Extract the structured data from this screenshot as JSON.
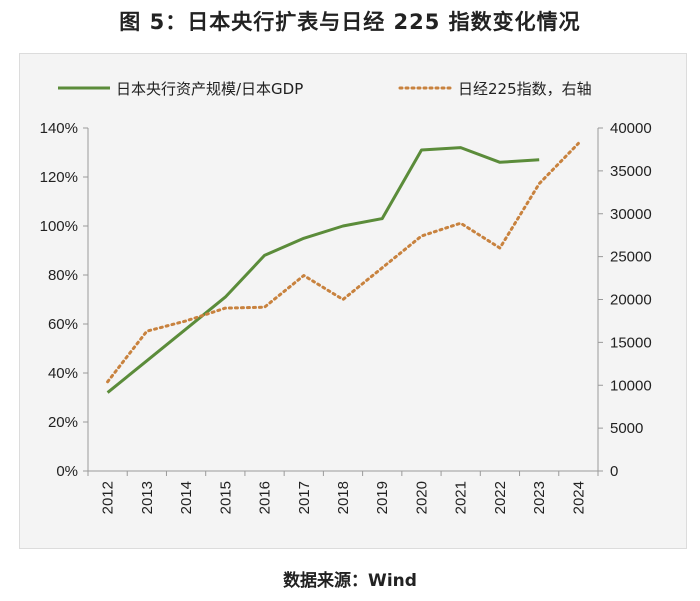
{
  "figure": {
    "title": "图 5：日本央行扩表与日经 225 指数变化情况",
    "source": "数据来源：Wind"
  },
  "chart_data": {
    "type": "line",
    "categories": [
      "2012",
      "2013",
      "2014",
      "2015",
      "2016",
      "2017",
      "2018",
      "2019",
      "2020",
      "2021",
      "2022",
      "2023",
      "2024"
    ],
    "series": [
      {
        "name": "日本央行资产规模/日本GDP",
        "axis": "left",
        "style": "solid",
        "color": "#5b8c3a",
        "values": [
          0.32,
          0.45,
          0.58,
          0.71,
          0.88,
          0.95,
          1.0,
          1.03,
          1.31,
          1.32,
          1.26,
          1.27,
          null
        ]
      },
      {
        "name": "日经225指数，右轴",
        "axis": "right",
        "style": "dotted",
        "color": "#c8823e",
        "values": [
          10400,
          16300,
          17500,
          19000,
          19100,
          22800,
          20000,
          23700,
          27400,
          28900,
          26000,
          33500,
          38200
        ]
      }
    ],
    "y_left": {
      "lim": [
        0,
        1.4
      ],
      "ticks": [
        0,
        0.2,
        0.4,
        0.6,
        0.8,
        1.0,
        1.2,
        1.4
      ],
      "tick_labels": [
        "0%",
        "20%",
        "40%",
        "60%",
        "80%",
        "100%",
        "120%",
        "140%"
      ]
    },
    "y_right": {
      "lim": [
        0,
        40000
      ],
      "ticks": [
        0,
        5000,
        10000,
        15000,
        20000,
        25000,
        30000,
        35000,
        40000
      ],
      "tick_labels": [
        "0",
        "5000",
        "10000",
        "15000",
        "20000",
        "25000",
        "30000",
        "35000",
        "40000"
      ]
    },
    "grid": false,
    "legend_position": "top"
  }
}
